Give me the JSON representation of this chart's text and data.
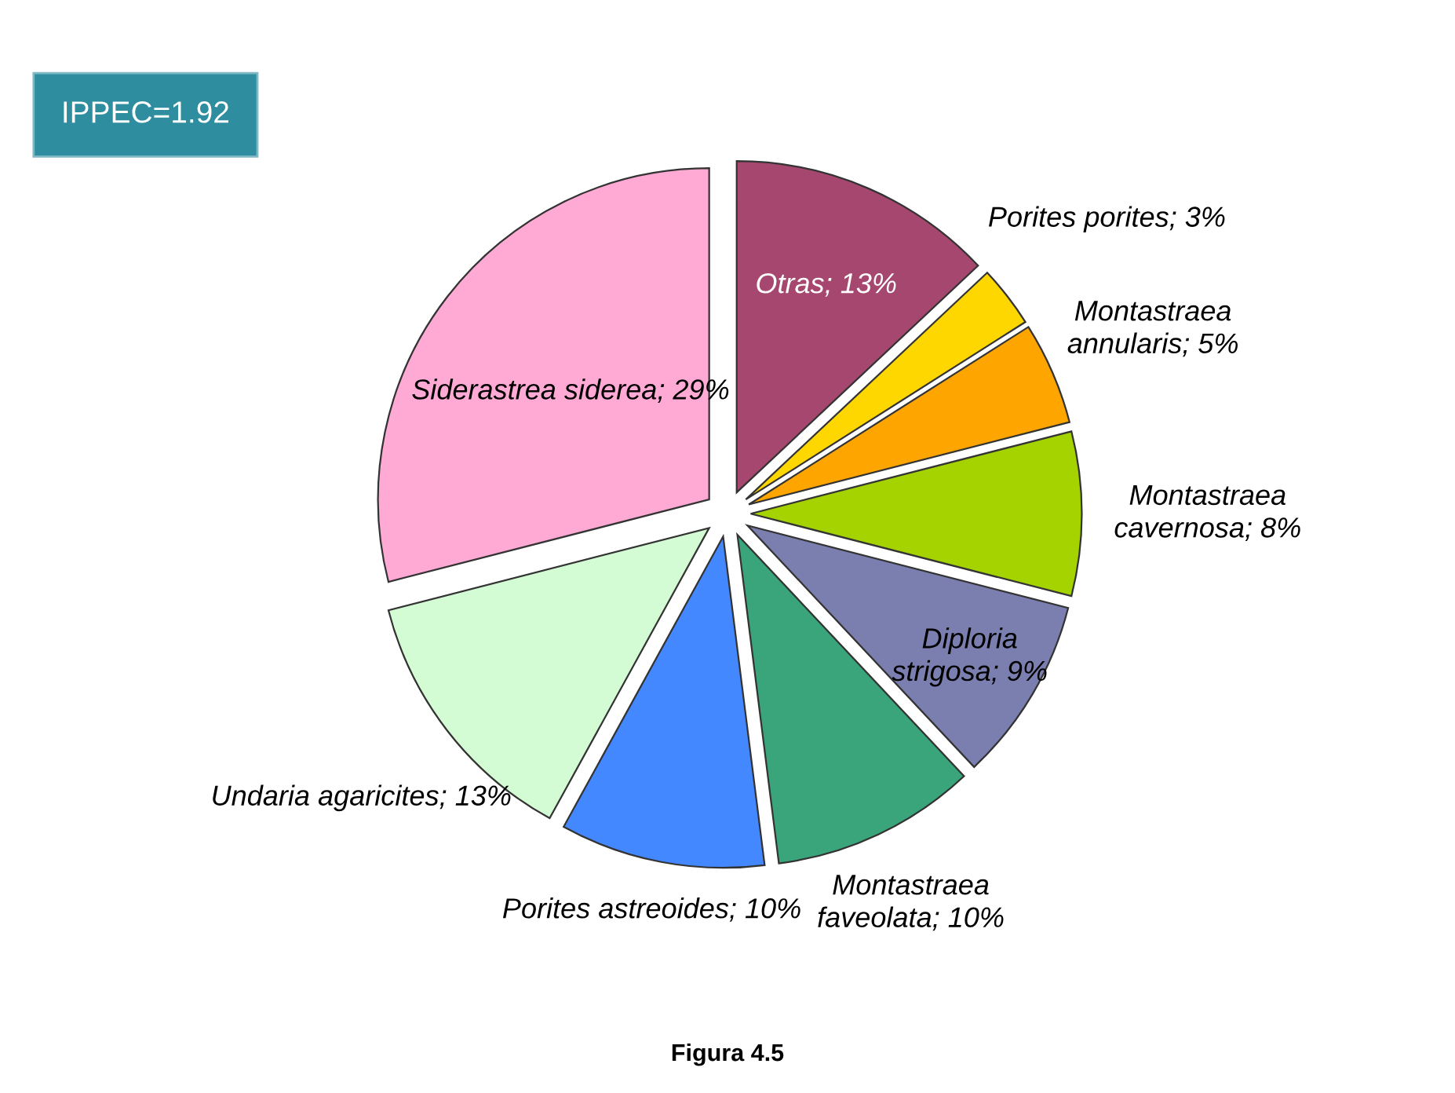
{
  "chart_data": {
    "type": "pie",
    "categories": [
      "Otras",
      "Porites porites",
      "Montastraea annularis",
      "Montastraea cavernosa",
      "Diploria strigosa",
      "Montastraea faveolata",
      "Porites astreoides",
      "Undaria agaricites",
      "Siderastrea siderea"
    ],
    "values": [
      13,
      3,
      5,
      8,
      9,
      10,
      10,
      13,
      29
    ],
    "value_labels": [
      "13%",
      "3%",
      "5%",
      "8%",
      "9%",
      "10%",
      "10%",
      "13%",
      "29%"
    ],
    "colors": [
      "#a5476f",
      "#ffd700",
      "#ffa500",
      "#a4d300",
      "#7b7fb0",
      "#3aa57a",
      "#4488ff",
      "#d4fcd4",
      "#ffaad4"
    ],
    "annotations": [
      "IPPEC=1.92",
      "Figura 4.5"
    ],
    "legend": false
  }
}
